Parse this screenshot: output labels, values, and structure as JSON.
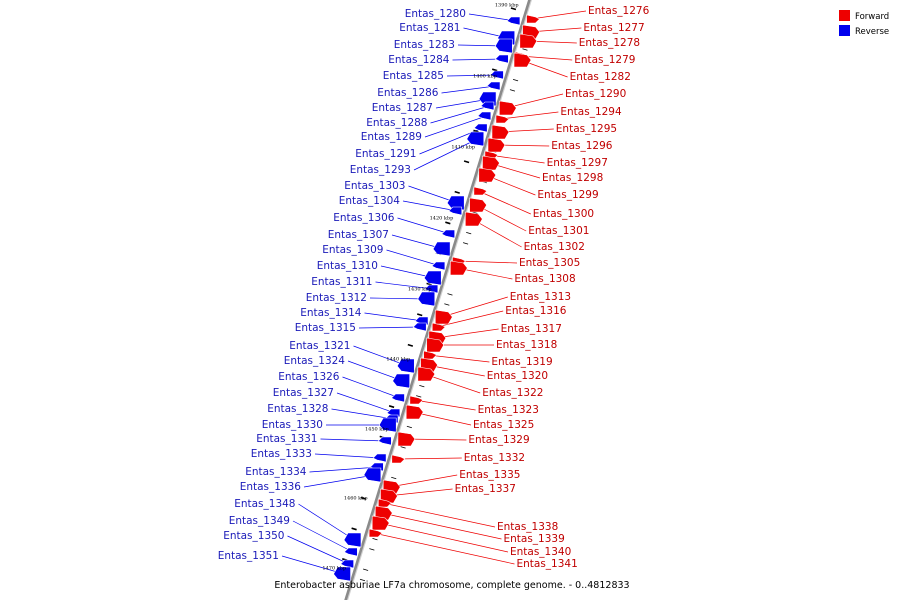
{
  "caption": "Enterobacter asburiae LF7a chromosome, complete genome. - 0..4812833",
  "legend": {
    "position": "top-right",
    "items": [
      {
        "label": "Forward",
        "color": "#ee0000"
      },
      {
        "label": "Reverse",
        "color": "#0000ee"
      }
    ]
  },
  "colors": {
    "forward": "#ee0000",
    "reverse": "#0000ee",
    "backbone": "#8a8a8a"
  },
  "kbp_marks": [
    "1390 kbp",
    "1400 kbp",
    "1410 kbp",
    "1420 kbp",
    "1430 kbp",
    "1440 kbp",
    "1450 kbp",
    "1460 kbp",
    "1470 kbp"
  ],
  "reverse_genes": [
    "Entas_1280",
    "Entas_1281",
    "Entas_1283",
    "Entas_1284",
    "Entas_1285",
    "Entas_1286",
    "Entas_1287",
    "Entas_1288",
    "Entas_1289",
    "Entas_1291",
    "Entas_1293",
    "Entas_1303",
    "Entas_1304",
    "Entas_1306",
    "Entas_1307",
    "Entas_1309",
    "Entas_1310",
    "Entas_1311",
    "Entas_1312",
    "Entas_1314",
    "Entas_1315",
    "Entas_1321",
    "Entas_1324",
    "Entas_1326",
    "Entas_1327",
    "Entas_1328",
    "Entas_1330",
    "Entas_1331",
    "Entas_1333",
    "Entas_1334",
    "Entas_1336",
    "Entas_1348",
    "Entas_1349",
    "Entas_1350",
    "Entas_1351"
  ],
  "forward_genes": [
    "Entas_1276",
    "Entas_1277",
    "Entas_1278",
    "Entas_1279",
    "Entas_1282",
    "Entas_1290",
    "Entas_1294",
    "Entas_1295",
    "Entas_1296",
    "Entas_1297",
    "Entas_1298",
    "Entas_1299",
    "Entas_1300",
    "Entas_1301",
    "Entas_1302",
    "Entas_1305",
    "Entas_1308",
    "Entas_1313",
    "Entas_1316",
    "Entas_1317",
    "Entas_1318",
    "Entas_1319",
    "Entas_1320",
    "Entas_1322",
    "Entas_1323",
    "Entas_1325",
    "Entas_1329",
    "Entas_1332",
    "Entas_1335",
    "Entas_1337",
    "Entas_1338",
    "Entas_1339",
    "Entas_1340",
    "Entas_1341"
  ]
}
